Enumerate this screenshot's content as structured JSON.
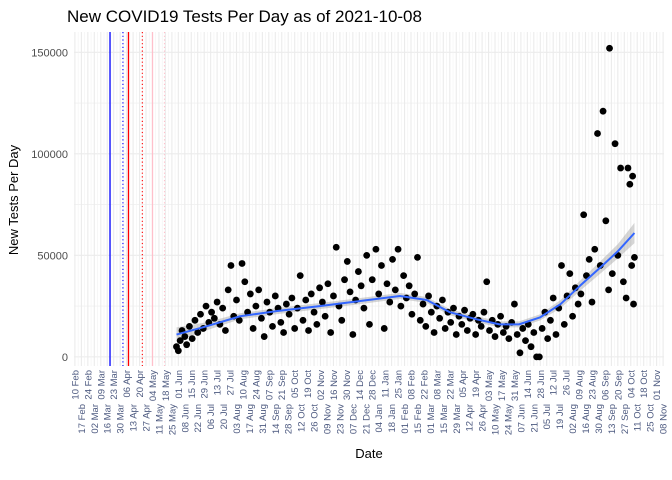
{
  "chart_data": {
    "type": "scatter",
    "title": "New COVID19 Tests Per Day as of 2021-10-08",
    "xlabel": "Date",
    "ylabel": "New Tests Per Day",
    "x_type": "date",
    "xlim": [
      "2020-02-09",
      "2021-11-09"
    ],
    "ylim": [
      -4500,
      160000
    ],
    "y_ticks": [
      0,
      50000,
      100000,
      150000
    ],
    "x_tick_start": "2020-02-10",
    "x_tick_interval_days": 7,
    "x_tick_format": "DD Mon",
    "grid": true,
    "legend": "none",
    "point_color": "#000000",
    "smooth_color": "#3366FF",
    "ribbon_color": "#999999",
    "vlines": [
      {
        "date": "2020-03-19",
        "color": "#0000FF",
        "linetype": "solid"
      },
      {
        "date": "2020-04-02",
        "color": "#0000FF",
        "linetype": "dotted"
      },
      {
        "date": "2020-04-08",
        "color": "#FF0000",
        "linetype": "solid"
      },
      {
        "date": "2020-04-23",
        "color": "#FF0000",
        "linetype": "dotted"
      },
      {
        "date": "2020-05-04",
        "color": "#FFC0CB",
        "linetype": "solid"
      },
      {
        "date": "2020-05-17",
        "color": "#FFC0CB",
        "linetype": "dotted"
      }
    ],
    "smooth": {
      "x": [
        "2020-05-30",
        "2020-07-01",
        "2020-08-07",
        "2020-09-15",
        "2020-11-01",
        "2020-12-15",
        "2021-01-27",
        "2021-02-25",
        "2021-03-22",
        "2021-04-20",
        "2021-05-15",
        "2021-06-05",
        "2021-06-28",
        "2021-07-20",
        "2021-08-10",
        "2021-09-01",
        "2021-09-20",
        "2021-10-08"
      ],
      "y": [
        11000,
        15000,
        20000,
        22500,
        25000,
        27500,
        30000,
        28000,
        22000,
        18500,
        16000,
        16000,
        19500,
        26000,
        35000,
        44000,
        52000,
        61000
      ],
      "se": [
        3500,
        2000,
        1500,
        1500,
        1500,
        1500,
        1500,
        1500,
        1500,
        1500,
        1500,
        1500,
        1500,
        2000,
        2500,
        3000,
        3500,
        5000
      ]
    },
    "points": [
      [
        "2020-05-30",
        5000
      ],
      [
        "2020-06-01",
        3000
      ],
      [
        "2020-06-03",
        8000
      ],
      [
        "2020-06-05",
        13000
      ],
      [
        "2020-06-08",
        10000
      ],
      [
        "2020-06-10",
        6000
      ],
      [
        "2020-06-13",
        15000
      ],
      [
        "2020-06-16",
        9000
      ],
      [
        "2020-06-19",
        18000
      ],
      [
        "2020-06-22",
        12000
      ],
      [
        "2020-06-25",
        21000
      ],
      [
        "2020-06-28",
        14000
      ],
      [
        "2020-07-01",
        25000
      ],
      [
        "2020-07-04",
        17000
      ],
      [
        "2020-07-07",
        22000
      ],
      [
        "2020-07-10",
        19000
      ],
      [
        "2020-07-13",
        27000
      ],
      [
        "2020-07-16",
        16000
      ],
      [
        "2020-07-19",
        24000
      ],
      [
        "2020-07-22",
        13000
      ],
      [
        "2020-07-25",
        33000
      ],
      [
        "2020-07-28",
        45000
      ],
      [
        "2020-07-31",
        20000
      ],
      [
        "2020-08-03",
        28000
      ],
      [
        "2020-08-06",
        18000
      ],
      [
        "2020-08-09",
        46000
      ],
      [
        "2020-08-12",
        37000
      ],
      [
        "2020-08-15",
        22000
      ],
      [
        "2020-08-18",
        31000
      ],
      [
        "2020-08-21",
        14000
      ],
      [
        "2020-08-24",
        25000
      ],
      [
        "2020-08-27",
        33000
      ],
      [
        "2020-08-30",
        19000
      ],
      [
        "2020-09-02",
        10000
      ],
      [
        "2020-09-05",
        27000
      ],
      [
        "2020-09-08",
        22000
      ],
      [
        "2020-09-11",
        15000
      ],
      [
        "2020-09-14",
        30000
      ],
      [
        "2020-09-17",
        24000
      ],
      [
        "2020-09-20",
        17000
      ],
      [
        "2020-09-23",
        12000
      ],
      [
        "2020-09-26",
        26000
      ],
      [
        "2020-09-29",
        21000
      ],
      [
        "2020-10-02",
        29000
      ],
      [
        "2020-10-05",
        14000
      ],
      [
        "2020-10-08",
        24000
      ],
      [
        "2020-10-11",
        40000
      ],
      [
        "2020-10-14",
        18000
      ],
      [
        "2020-10-17",
        28000
      ],
      [
        "2020-10-20",
        13000
      ],
      [
        "2020-10-23",
        31000
      ],
      [
        "2020-10-26",
        22000
      ],
      [
        "2020-10-29",
        16000
      ],
      [
        "2020-11-01",
        34000
      ],
      [
        "2020-11-04",
        27000
      ],
      [
        "2020-11-07",
        20000
      ],
      [
        "2020-11-10",
        36000
      ],
      [
        "2020-11-13",
        12000
      ],
      [
        "2020-11-16",
        30000
      ],
      [
        "2020-11-19",
        54000
      ],
      [
        "2020-11-22",
        25000
      ],
      [
        "2020-11-25",
        18000
      ],
      [
        "2020-11-28",
        38000
      ],
      [
        "2020-12-01",
        47000
      ],
      [
        "2020-12-04",
        32000
      ],
      [
        "2020-12-07",
        11000
      ],
      [
        "2020-12-10",
        28000
      ],
      [
        "2020-12-13",
        42000
      ],
      [
        "2020-12-16",
        35000
      ],
      [
        "2020-12-19",
        24000
      ],
      [
        "2020-12-22",
        50000
      ],
      [
        "2020-12-25",
        16000
      ],
      [
        "2020-12-28",
        38000
      ],
      [
        "2021-01-01",
        53000
      ],
      [
        "2021-01-04",
        31000
      ],
      [
        "2021-01-07",
        45000
      ],
      [
        "2021-01-10",
        14000
      ],
      [
        "2021-01-13",
        36000
      ],
      [
        "2021-01-16",
        27000
      ],
      [
        "2021-01-19",
        48000
      ],
      [
        "2021-01-22",
        33000
      ],
      [
        "2021-01-25",
        53000
      ],
      [
        "2021-01-28",
        25000
      ],
      [
        "2021-01-31",
        40000
      ],
      [
        "2021-02-03",
        29000
      ],
      [
        "2021-02-06",
        35000
      ],
      [
        "2021-02-09",
        21000
      ],
      [
        "2021-02-12",
        31000
      ],
      [
        "2021-02-15",
        49000
      ],
      [
        "2021-02-18",
        18000
      ],
      [
        "2021-02-21",
        26000
      ],
      [
        "2021-02-24",
        15000
      ],
      [
        "2021-02-27",
        30000
      ],
      [
        "2021-03-02",
        22000
      ],
      [
        "2021-03-05",
        12000
      ],
      [
        "2021-03-08",
        25000
      ],
      [
        "2021-03-11",
        19000
      ],
      [
        "2021-03-14",
        28000
      ],
      [
        "2021-03-17",
        14000
      ],
      [
        "2021-03-20",
        22000
      ],
      [
        "2021-03-23",
        17000
      ],
      [
        "2021-03-26",
        24000
      ],
      [
        "2021-03-29",
        11000
      ],
      [
        "2021-04-01",
        20000
      ],
      [
        "2021-04-04",
        16000
      ],
      [
        "2021-04-07",
        23000
      ],
      [
        "2021-04-10",
        13000
      ],
      [
        "2021-04-13",
        19000
      ],
      [
        "2021-04-16",
        21000
      ],
      [
        "2021-04-19",
        11000
      ],
      [
        "2021-04-22",
        18000
      ],
      [
        "2021-04-25",
        15000
      ],
      [
        "2021-04-28",
        22000
      ],
      [
        "2021-05-01",
        37000
      ],
      [
        "2021-05-04",
        13000
      ],
      [
        "2021-05-07",
        18000
      ],
      [
        "2021-05-10",
        10000
      ],
      [
        "2021-05-13",
        16000
      ],
      [
        "2021-05-16",
        20000
      ],
      [
        "2021-05-19",
        12000
      ],
      [
        "2021-05-22",
        15000
      ],
      [
        "2021-05-25",
        9000
      ],
      [
        "2021-05-28",
        17000
      ],
      [
        "2021-05-31",
        26000
      ],
      [
        "2021-06-03",
        11000
      ],
      [
        "2021-06-06",
        2000
      ],
      [
        "2021-06-09",
        14000
      ],
      [
        "2021-06-12",
        8000
      ],
      [
        "2021-06-15",
        16000
      ],
      [
        "2021-06-18",
        5000
      ],
      [
        "2021-06-21",
        12000
      ],
      [
        "2021-06-24",
        0
      ],
      [
        "2021-06-27",
        0
      ],
      [
        "2021-06-30",
        14000
      ],
      [
        "2021-07-03",
        22000
      ],
      [
        "2021-07-06",
        9000
      ],
      [
        "2021-07-09",
        18000
      ],
      [
        "2021-07-12",
        29000
      ],
      [
        "2021-07-15",
        11000
      ],
      [
        "2021-07-18",
        24000
      ],
      [
        "2021-07-21",
        45000
      ],
      [
        "2021-07-24",
        16000
      ],
      [
        "2021-07-27",
        30000
      ],
      [
        "2021-07-30",
        41000
      ],
      [
        "2021-08-02",
        20000
      ],
      [
        "2021-08-05",
        34000
      ],
      [
        "2021-08-08",
        26000
      ],
      [
        "2021-08-11",
        31000
      ],
      [
        "2021-08-14",
        70000
      ],
      [
        "2021-08-17",
        40000
      ],
      [
        "2021-08-20",
        48000
      ],
      [
        "2021-08-23",
        27000
      ],
      [
        "2021-08-26",
        53000
      ],
      [
        "2021-08-29",
        110000
      ],
      [
        "2021-09-01",
        45000
      ],
      [
        "2021-09-04",
        121000
      ],
      [
        "2021-09-07",
        67000
      ],
      [
        "2021-09-10",
        33000
      ],
      [
        "2021-09-11",
        152000
      ],
      [
        "2021-09-14",
        41000
      ],
      [
        "2021-09-17",
        105000
      ],
      [
        "2021-09-20",
        50000
      ],
      [
        "2021-09-23",
        93000
      ],
      [
        "2021-09-26",
        37000
      ],
      [
        "2021-09-29",
        29000
      ],
      [
        "2021-10-01",
        93000
      ],
      [
        "2021-10-03",
        85000
      ],
      [
        "2021-10-05",
        45000
      ],
      [
        "2021-10-06",
        89000
      ],
      [
        "2021-10-07",
        26000
      ],
      [
        "2021-10-08",
        49000
      ]
    ]
  }
}
